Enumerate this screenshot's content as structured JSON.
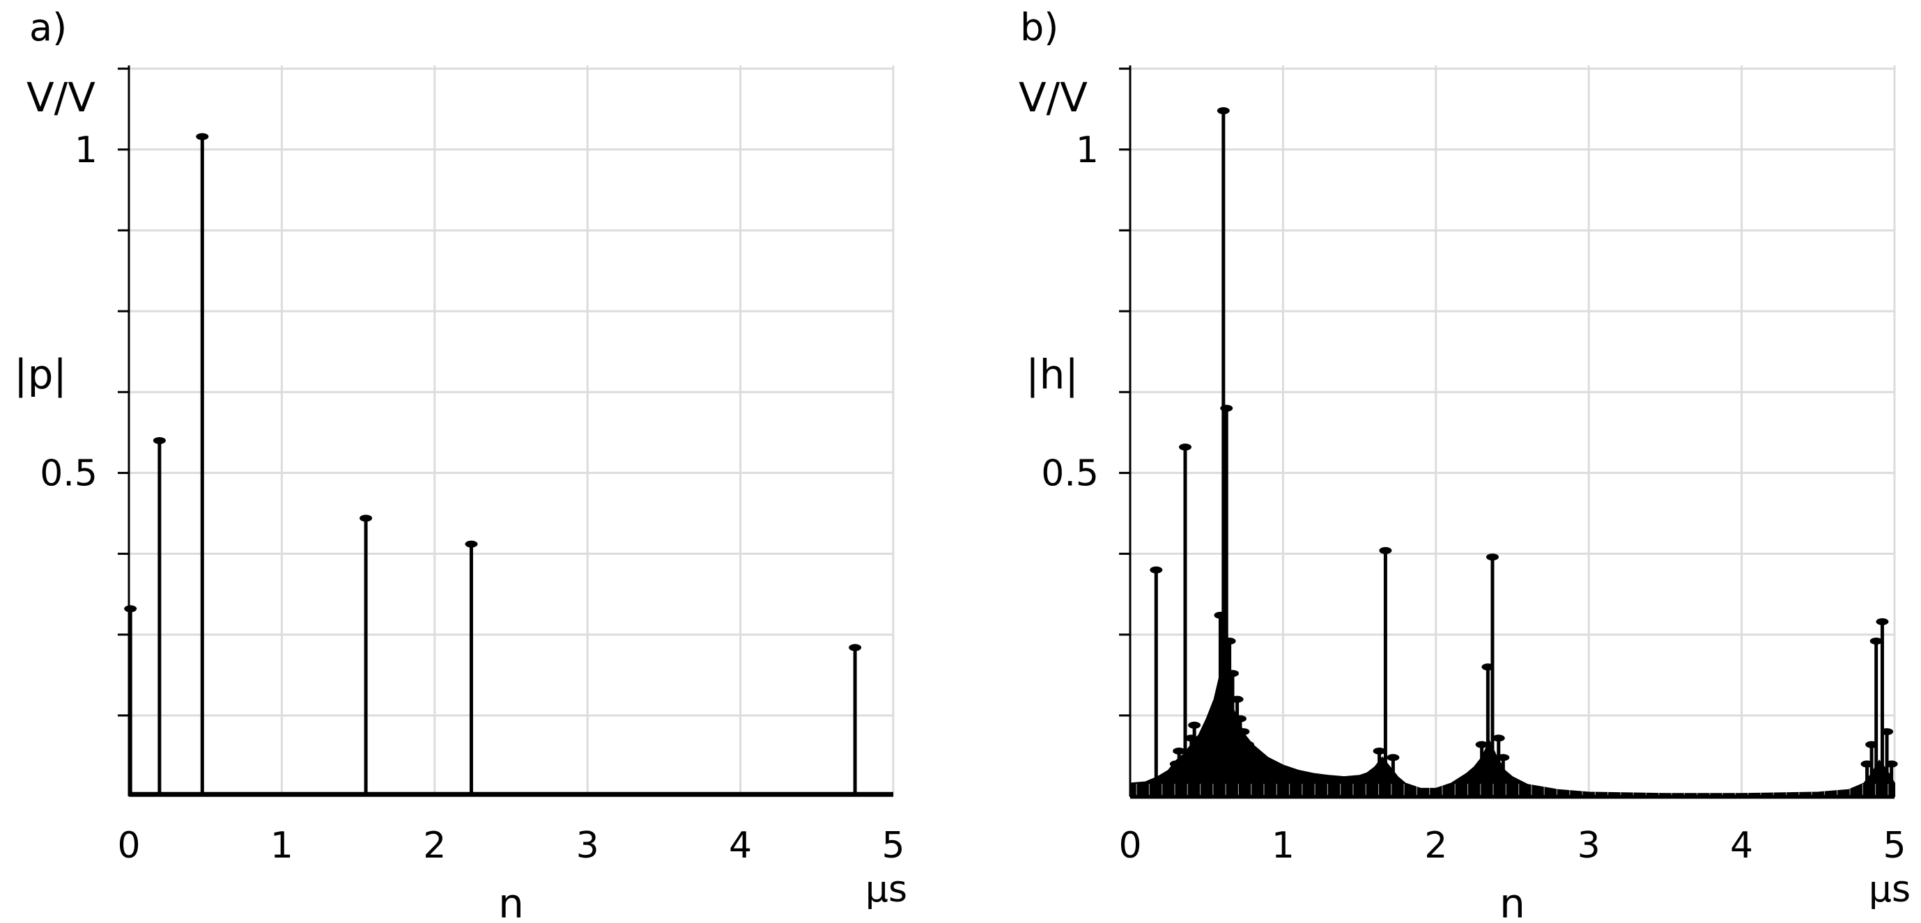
{
  "chart_data": [
    {
      "type": "stem",
      "panel_label": "a)",
      "unit_label": "V/V",
      "ylabel": "|p|",
      "xlabel": "n",
      "x_unit": "µs",
      "xlim": [
        0,
        5
      ],
      "ylim": [
        0,
        1.13
      ],
      "x_ticks": [
        0,
        1,
        2,
        3,
        4,
        5
      ],
      "y_tick_labels": [
        {
          "value": 0.5,
          "label": "0.5"
        },
        {
          "value": 1,
          "label": "1"
        }
      ],
      "y_minor_ticks": [
        0.125,
        0.25,
        0.375,
        0.625,
        0.75,
        0.875,
        1.125
      ],
      "grid": true,
      "baseline": 0.003,
      "series": [
        {
          "x": [
            0.01,
            0.2,
            0.48,
            1.55,
            2.24,
            4.75
          ],
          "y": [
            0.29,
            0.55,
            1.02,
            0.43,
            0.39,
            0.23
          ]
        }
      ]
    },
    {
      "type": "stem",
      "panel_label": "b)",
      "unit_label": "V/V",
      "ylabel": "|h|",
      "xlabel": "n",
      "x_unit": "µs",
      "xlim": [
        0,
        5
      ],
      "ylim": [
        0,
        1.13
      ],
      "x_ticks": [
        0,
        1,
        2,
        3,
        4,
        5
      ],
      "y_tick_labels": [
        {
          "value": 0.5,
          "label": "0.5"
        },
        {
          "value": 1,
          "label": "1"
        }
      ],
      "y_minor_ticks": [
        0.125,
        0.25,
        0.375,
        0.625,
        0.75,
        0.875,
        1.125
      ],
      "grid": true,
      "envelope": {
        "x": [
          0,
          0.1,
          0.18,
          0.25,
          0.3,
          0.35,
          0.4,
          0.45,
          0.5,
          0.55,
          0.6,
          0.65,
          0.7,
          0.75,
          0.8,
          0.9,
          1.0,
          1.1,
          1.2,
          1.3,
          1.4,
          1.5,
          1.55,
          1.6,
          1.65,
          1.7,
          1.75,
          1.8,
          1.9,
          2.0,
          2.1,
          2.2,
          2.25,
          2.3,
          2.35,
          2.4,
          2.45,
          2.5,
          2.6,
          2.8,
          3.0,
          3.5,
          4.0,
          4.5,
          4.7,
          4.8,
          4.85,
          4.9,
          4.95,
          5.0
        ],
        "y": [
          0.02,
          0.022,
          0.03,
          0.04,
          0.055,
          0.065,
          0.08,
          0.095,
          0.12,
          0.15,
          0.2,
          0.15,
          0.12,
          0.095,
          0.08,
          0.06,
          0.048,
          0.04,
          0.035,
          0.032,
          0.03,
          0.032,
          0.036,
          0.045,
          0.06,
          0.045,
          0.03,
          0.02,
          0.012,
          0.012,
          0.02,
          0.035,
          0.045,
          0.06,
          0.085,
          0.06,
          0.04,
          0.03,
          0.018,
          0.01,
          0.006,
          0.004,
          0.004,
          0.006,
          0.01,
          0.02,
          0.035,
          0.055,
          0.04,
          0.02
        ]
      },
      "series": [
        {
          "x": [
            0.17,
            0.36,
            0.42,
            0.3,
            0.32,
            0.4,
            0.46,
            0.5,
            0.53,
            0.56,
            0.59,
            0.61,
            0.63,
            0.65,
            0.67,
            0.7,
            0.72,
            0.74,
            0.77,
            0.8,
            0.84,
            1.63,
            1.67,
            1.72,
            2.3,
            2.34,
            2.37,
            2.41,
            2.44,
            4.82,
            4.85,
            4.88,
            4.92,
            4.95,
            4.98
          ],
          "y": [
            0.35,
            0.54,
            0.11,
            0.05,
            0.07,
            0.09,
            0.06,
            0.08,
            0.1,
            0.13,
            0.28,
            1.06,
            0.6,
            0.24,
            0.19,
            0.15,
            0.12,
            0.1,
            0.08,
            0.06,
            0.05,
            0.07,
            0.38,
            0.06,
            0.08,
            0.2,
            0.37,
            0.09,
            0.06,
            0.05,
            0.08,
            0.24,
            0.27,
            0.1,
            0.05
          ]
        }
      ]
    }
  ]
}
